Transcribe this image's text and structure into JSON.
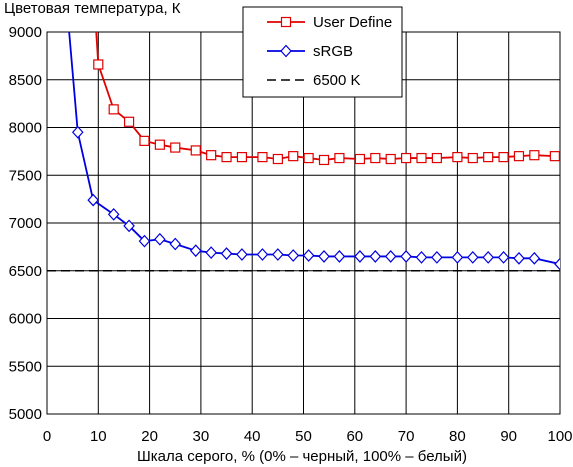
{
  "chart_data": {
    "type": "line",
    "title": "",
    "ylabel": "Цветовая температура, К",
    "xlabel": "Шкала серого, % (0% – черный, 100% – белый)",
    "xlim": [
      0,
      100
    ],
    "ylim": [
      5000,
      9000
    ],
    "x_ticks": [
      "0",
      "10",
      "20",
      "30",
      "40",
      "50",
      "60",
      "70",
      "80",
      "90",
      "100"
    ],
    "y_ticks": [
      "5000",
      "5500",
      "6000",
      "6500",
      "7000",
      "7500",
      "8000",
      "8500",
      "9000"
    ],
    "grid": true,
    "legend_position": "top-center",
    "series": [
      {
        "name": "User Define",
        "color": "#e00000",
        "marker": "square",
        "line_style": "solid",
        "x": [
          9,
          10,
          13,
          16,
          19,
          22,
          25,
          29,
          32,
          35,
          38,
          42,
          45,
          48,
          51,
          54,
          57,
          61,
          64,
          67,
          70,
          73,
          76,
          80,
          83,
          86,
          89,
          92,
          95,
          99
        ],
        "y": [
          9500,
          8660,
          8190,
          8060,
          7860,
          7820,
          7790,
          7760,
          7710,
          7690,
          7690,
          7690,
          7670,
          7700,
          7680,
          7660,
          7680,
          7670,
          7680,
          7670,
          7680,
          7680,
          7680,
          7690,
          7680,
          7690,
          7690,
          7700,
          7710,
          7700
        ]
      },
      {
        "name": "sRGB",
        "color": "#0000e0",
        "marker": "diamond",
        "line_style": "solid",
        "x": [
          4,
          6,
          9,
          13,
          16,
          19,
          22,
          25,
          29,
          32,
          35,
          38,
          42,
          45,
          48,
          51,
          54,
          57,
          61,
          64,
          67,
          70,
          73,
          76,
          80,
          83,
          86,
          89,
          92,
          95,
          100
        ],
        "y": [
          9200,
          7950,
          7240,
          7090,
          6970,
          6810,
          6830,
          6780,
          6710,
          6690,
          6680,
          6670,
          6670,
          6670,
          6660,
          6660,
          6650,
          6650,
          6650,
          6650,
          6650,
          6650,
          6640,
          6640,
          6640,
          6640,
          6640,
          6640,
          6630,
          6630,
          6570
        ]
      },
      {
        "name": "6500 K",
        "color": "#000000",
        "marker": "none",
        "line_style": "dashed",
        "x": [
          0,
          100
        ],
        "y": [
          6500,
          6500
        ]
      }
    ]
  }
}
